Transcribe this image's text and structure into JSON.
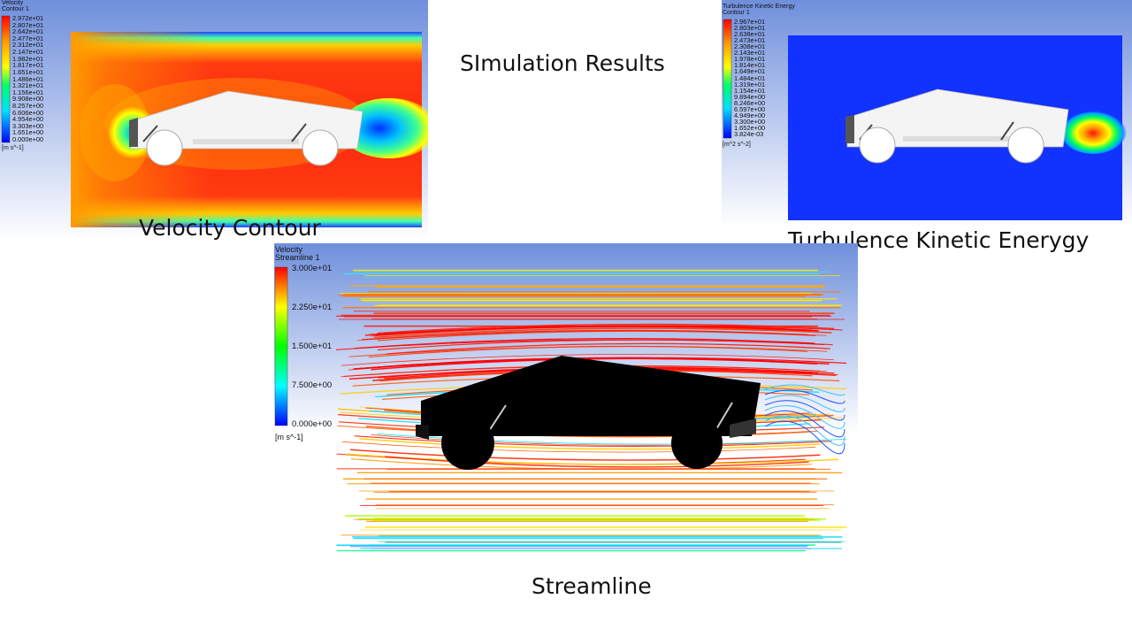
{
  "page_title": "SImulation Results",
  "panels": {
    "velocity_contour": {
      "caption": "Velocity Contour",
      "legend_title_1": "Velocity",
      "legend_title_2": "Contour 1",
      "unit": "[m s^-1]",
      "ticks": [
        "2.972e+01",
        "2.807e+01",
        "2.642e+01",
        "2.477e+01",
        "2.312e+01",
        "2.147e+01",
        "1.982e+01",
        "1.817e+01",
        "1.651e+01",
        "1.486e+01",
        "1.321e+01",
        "1.156e+01",
        "9.908e+00",
        "8.257e+00",
        "6.606e+00",
        "4.954e+00",
        "3.303e+00",
        "1.651e+00",
        "0.000e+00"
      ]
    },
    "turbulence_ke": {
      "caption": "Turbulence Kinetic Enerygy",
      "legend_title_1": "Turbulence Kinetic Energy",
      "legend_title_2": "Contour 1",
      "unit": "[m^2 s^-2]",
      "ticks": [
        "2.967e+01",
        "2.803e+01",
        "2.638e+01",
        "2.473e+01",
        "2.308e+01",
        "2.143e+01",
        "1.978e+01",
        "1.814e+01",
        "1.649e+01",
        "1.484e+01",
        "1.319e+01",
        "1.154e+01",
        "9.894e+00",
        "8.246e+00",
        "6.597e+00",
        "4.949e+00",
        "3.300e+00",
        "1.652e+00",
        "3.824e-03"
      ]
    },
    "streamline": {
      "caption": "Streamline",
      "legend_title_1": "Velocity",
      "legend_title_2": "Streamline 1",
      "unit": "[m s^-1]",
      "ticks": [
        "3.000e+01",
        "2.250e+01",
        "1.500e+01",
        "7.500e+00",
        "0.000e+00"
      ]
    }
  },
  "colors": {
    "cfd_background_top": "#6f8fdc",
    "cfd_background_bottom": "#ffffff",
    "colormap": [
      "#ff0000",
      "#ff7f00",
      "#ffff00",
      "#7fff00",
      "#00ff00",
      "#00ff7f",
      "#00ffff",
      "#007fff",
      "#0000ff"
    ]
  }
}
